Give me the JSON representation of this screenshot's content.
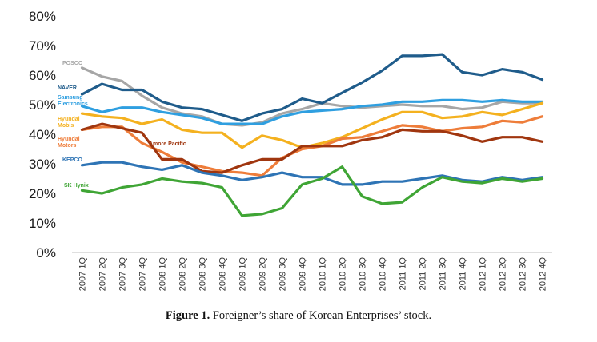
{
  "chart_data": {
    "type": "line",
    "title": "",
    "xlabel": "",
    "ylabel": "",
    "ylim": [
      0,
      80
    ],
    "ytick_labels": [
      "0%",
      "10%",
      "20%",
      "30%",
      "40%",
      "50%",
      "60%",
      "70%",
      "80%"
    ],
    "categories": [
      "2007 1Q",
      "2007 2Q",
      "2007 3Q",
      "2007 4Q",
      "2008 1Q",
      "2008 2Q",
      "2008 3Q",
      "2008 4Q",
      "2009 1Q",
      "2009 2Q",
      "2009 3Q",
      "2009 4Q",
      "2010 1Q",
      "2010 2Q",
      "2010 3Q",
      "2010 4Q",
      "2011 1Q",
      "2011 2Q",
      "2011 3Q",
      "2011 4Q",
      "2012 1Q",
      "2012 2Q",
      "2012 3Q",
      "2012 4Q"
    ],
    "series": [
      {
        "name": "POSCO",
        "label_lines": [
          "POSCO"
        ],
        "color": "#a6a6a6",
        "values": [
          62.5,
          59.5,
          58,
          53,
          49,
          47,
          46,
          43.5,
          43,
          44,
          47,
          48.5,
          50.5,
          49.5,
          49,
          49.5,
          50,
          49.5,
          49.5,
          48.5,
          49,
          51,
          50.5,
          50.5
        ]
      },
      {
        "name": "NAVER",
        "label_lines": [
          "NAVER"
        ],
        "color": "#1f5c8b",
        "values": [
          53.5,
          57,
          55,
          55,
          51,
          49,
          48.5,
          46.5,
          44.5,
          47,
          48.5,
          52,
          50.5,
          54,
          57.5,
          61.5,
          66.5,
          66.5,
          67,
          61,
          60,
          62,
          61,
          58.5
        ]
      },
      {
        "name": "Samsung Electronics",
        "label_lines": [
          "Samsung",
          "Electronics"
        ],
        "color": "#2f9fe0",
        "values": [
          49.5,
          47.5,
          49,
          49,
          47.5,
          46.5,
          45.5,
          43.5,
          43.5,
          43.5,
          46,
          47.5,
          48,
          48.5,
          49.5,
          50,
          51,
          51,
          51.5,
          51.5,
          51,
          51.5,
          51,
          51
        ]
      },
      {
        "name": "Hyundai Mobis",
        "label_lines": [
          "Hyundai",
          "Mobis"
        ],
        "color": "#f4b11f",
        "values": [
          47,
          46,
          45.5,
          43.5,
          45,
          41.5,
          40.5,
          40.5,
          35.5,
          39.5,
          38,
          35.5,
          37,
          39,
          42,
          45,
          47.5,
          47.5,
          45.5,
          46,
          47.5,
          46.5,
          48.5,
          50.5
        ]
      },
      {
        "name": "Hyundai Motors",
        "label_lines": [
          "Hyundai",
          "Motors"
        ],
        "color": "#ee7d3a",
        "values": [
          41.5,
          42.5,
          42.5,
          37,
          34,
          30.5,
          29,
          27.5,
          27,
          26,
          32,
          35,
          36,
          38.5,
          39,
          41,
          43,
          42.5,
          41,
          42,
          42.5,
          44.5,
          44,
          46
        ]
      },
      {
        "name": "Amore Pacific",
        "label_lines": [
          "Amore Pacific"
        ],
        "color": "#a0360f",
        "values": [
          41.5,
          43.5,
          42,
          40.5,
          31.5,
          31.5,
          27.5,
          27,
          29.5,
          31.5,
          31.5,
          36,
          36,
          36,
          38,
          39,
          41.5,
          41,
          41,
          39.5,
          37.5,
          39,
          39,
          37.5
        ]
      },
      {
        "name": "KEPCO",
        "label_lines": [
          "KEPCO"
        ],
        "color": "#2e74b5",
        "values": [
          29.5,
          30.5,
          30.5,
          29,
          28,
          29.5,
          27,
          26,
          24.5,
          25.5,
          27,
          25.5,
          25.5,
          23,
          23,
          24,
          24,
          25,
          26,
          24.5,
          24,
          25.5,
          24.5,
          25.5
        ]
      },
      {
        "name": "SK Hynix",
        "label_lines": [
          "SK Hynix"
        ],
        "color": "#3fa535",
        "values": [
          21,
          20,
          22,
          23,
          25,
          24,
          23.5,
          22,
          12.5,
          13,
          15,
          23,
          25,
          29,
          19,
          16.5,
          17,
          22,
          25.5,
          24,
          23.5,
          25,
          24,
          25
        ]
      }
    ]
  },
  "caption": {
    "label": "Figure 1.",
    "text": " Foreigner’s share of Korean Enterprises’ stock."
  }
}
